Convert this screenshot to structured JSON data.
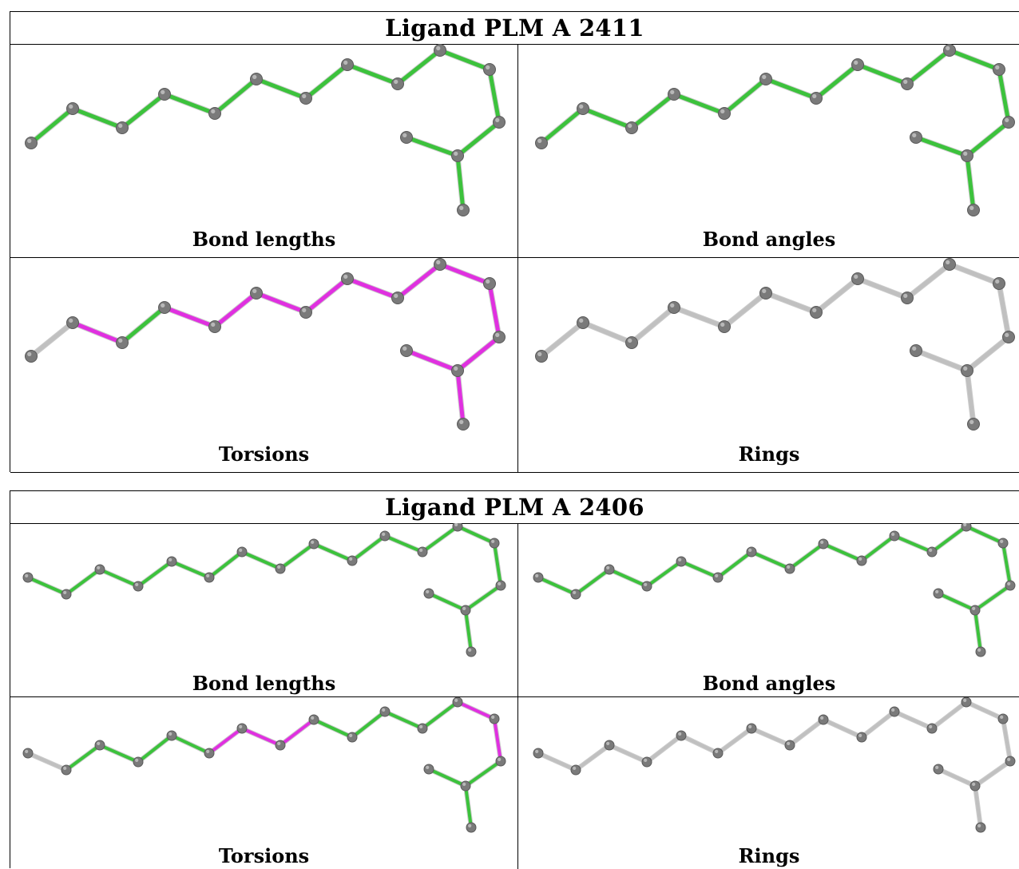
{
  "colors": {
    "bond_ok": "#3cc23c",
    "bond_outlier": "#e030e0",
    "bond_neutral": "#c0c0c0",
    "atom": "#7a7a7a"
  },
  "ligands": [
    {
      "title": "Ligand PLM A 2411",
      "panels": [
        {
          "caption": "Bond lengths",
          "bond_colors": [
            "g",
            "g",
            "g",
            "g",
            "g",
            "g",
            "g",
            "g",
            "g",
            "g",
            "g",
            "g",
            "g",
            "g",
            "m",
            "g",
            "g"
          ]
        },
        {
          "caption": "Bond angles",
          "bond_colors": [
            "g",
            "g",
            "g",
            "g",
            "g",
            "g",
            "g",
            "g",
            "g",
            "g",
            "g",
            "g",
            "g",
            "g",
            "m",
            "m",
            "m"
          ]
        },
        {
          "caption": "Torsions",
          "bond_colors": [
            "n",
            "m",
            "g",
            "m",
            "m",
            "m",
            "m",
            "m",
            "m",
            "m",
            "m",
            "m",
            "m",
            "m",
            "m",
            "n",
            "n"
          ]
        },
        {
          "caption": "Rings",
          "bond_colors": [
            "n",
            "n",
            "n",
            "n",
            "n",
            "n",
            "n",
            "n",
            "n",
            "n",
            "n",
            "n",
            "n",
            "n",
            "n",
            "n",
            "n"
          ]
        }
      ]
    },
    {
      "title": "Ligand PLM A 2406",
      "panels": [
        {
          "caption": "Bond lengths",
          "bond_colors": [
            "g",
            "g",
            "g",
            "g",
            "g",
            "g",
            "g",
            "g",
            "g",
            "g",
            "g",
            "g",
            "g",
            "g",
            "g",
            "g",
            "g",
            "m",
            "g",
            "g"
          ]
        },
        {
          "caption": "Bond angles",
          "bond_colors": [
            "g",
            "g",
            "g",
            "g",
            "g",
            "g",
            "g",
            "g",
            "g",
            "g",
            "g",
            "g",
            "g",
            "g",
            "g",
            "g",
            "g",
            "m",
            "m",
            "m"
          ]
        },
        {
          "caption": "Torsions",
          "bond_colors": [
            "n",
            "g",
            "g",
            "g",
            "g",
            "m",
            "m",
            "m",
            "g",
            "g",
            "g",
            "g",
            "m",
            "m",
            "g",
            "g",
            "g",
            "m",
            "n",
            "n"
          ]
        },
        {
          "caption": "Rings",
          "bond_colors": [
            "n",
            "n",
            "n",
            "n",
            "n",
            "n",
            "n",
            "n",
            "n",
            "n",
            "n",
            "n",
            "n",
            "n",
            "n",
            "n",
            "n",
            "n",
            "n",
            "n"
          ]
        }
      ]
    }
  ]
}
